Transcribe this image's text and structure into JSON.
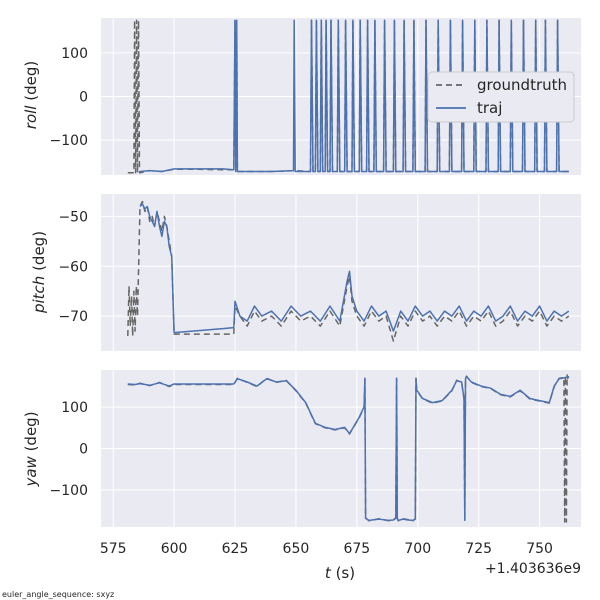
{
  "colors": {
    "panel_bg": "#eaeaf2",
    "grid": "#ffffff",
    "groundtruth": "#666666",
    "traj": "#4c72b0"
  },
  "legend": {
    "placement": "right, top panel",
    "entries": [
      "groundtruth",
      "traj"
    ]
  },
  "footnote": "euler_angle_sequence: sxyz",
  "chart_data": [
    {
      "type": "line",
      "ylabel_italic": "roll",
      "ylabel_unit": " (deg)",
      "ylim": [
        -180,
        180
      ],
      "yticks": [
        100,
        0,
        -100
      ],
      "ytick_labels": [
        "100",
        "0",
        "−100"
      ],
      "xlim": [
        570,
        767
      ],
      "series": [
        {
          "name": "groundtruth",
          "style": "dashed",
          "x": [
            581,
            583.5,
            583.8,
            584.2,
            584.6,
            585,
            585.4,
            585.8,
            586,
            590,
            595,
            600,
            610,
            620,
            624.5,
            625,
            625.3,
            625.7,
            626,
            630,
            640,
            650,
            655,
            656,
            656.4,
            657,
            658,
            658.4,
            659,
            660,
            660.4,
            661,
            662,
            662.4,
            663,
            664,
            664.4,
            665,
            667,
            667.4,
            668,
            670,
            670.4,
            671,
            673,
            673.4,
            674,
            676,
            676.4,
            677,
            679,
            679.4,
            680,
            682,
            682.4,
            683,
            686,
            686.4,
            687,
            690,
            690.4,
            691,
            694,
            694.4,
            695,
            698,
            698.4,
            699,
            703,
            703.4,
            704,
            708,
            708.4,
            709,
            713,
            713.4,
            714,
            718,
            718.4,
            719,
            723,
            723.4,
            724,
            728,
            728.4,
            729,
            733,
            733.4,
            734,
            738,
            738.4,
            739,
            743,
            743.4,
            744,
            748,
            748.4,
            749,
            752,
            752.4,
            753,
            757,
            757.4,
            758,
            762
          ],
          "y": [
            -175,
            -175,
            175,
            -175,
            175,
            -175,
            175,
            -175,
            -175,
            -170,
            -172,
            -167,
            -167,
            -168,
            -168,
            175,
            -172,
            175,
            -172,
            -172,
            -172,
            -170,
            -172,
            -172,
            175,
            -172,
            -172,
            175,
            -172,
            -172,
            175,
            -172,
            -172,
            175,
            -172,
            -172,
            175,
            -172,
            -172,
            175,
            -172,
            -172,
            175,
            -172,
            -172,
            175,
            -172,
            -172,
            175,
            -172,
            -172,
            175,
            -172,
            -172,
            175,
            -172,
            -172,
            175,
            -172,
            -172,
            175,
            -172,
            -172,
            175,
            -172,
            -172,
            175,
            -172,
            -172,
            175,
            -172,
            -172,
            175,
            -172,
            -172,
            175,
            -172,
            -172,
            175,
            -172,
            -172,
            175,
            -172,
            -172,
            175,
            -172,
            -172,
            175,
            -172,
            -172,
            175,
            -172,
            -172,
            175,
            -172,
            -172,
            175,
            -172,
            -172,
            175,
            -172,
            -172,
            175,
            -172,
            -172
          ]
        },
        {
          "name": "traj",
          "style": "solid",
          "x": [
            586,
            590,
            595,
            600,
            610,
            620,
            624.5,
            625,
            625.3,
            625.7,
            626,
            630,
            640,
            649,
            649.3,
            649.7,
            650,
            655,
            656,
            656.4,
            657,
            658,
            658.4,
            659,
            660,
            660.4,
            661,
            662,
            662.4,
            663,
            664,
            664.4,
            665,
            667,
            667.4,
            668,
            670,
            670.4,
            671,
            673,
            673.4,
            674,
            676,
            676.4,
            677,
            679,
            679.4,
            680,
            682,
            682.4,
            683,
            686,
            686.4,
            687,
            690,
            690.4,
            691,
            694,
            694.4,
            695,
            698,
            698.4,
            699,
            703,
            703.4,
            704,
            708,
            708.4,
            709,
            713,
            713.4,
            714,
            718,
            718.4,
            719,
            723,
            723.4,
            724,
            728,
            728.4,
            729,
            733,
            733.4,
            734,
            738,
            738.4,
            739,
            743,
            743.4,
            744,
            748,
            748.4,
            749,
            752,
            752.4,
            753,
            757,
            757.4,
            758,
            762
          ],
          "y": [
            -172,
            -170,
            -172,
            -166,
            -166,
            -166,
            -168,
            175,
            -172,
            175,
            -172,
            -172,
            -172,
            -170,
            175,
            -172,
            -172,
            -172,
            -172,
            175,
            -172,
            -172,
            175,
            -172,
            -172,
            175,
            -172,
            -172,
            175,
            -172,
            -172,
            175,
            -172,
            -172,
            175,
            -172,
            -172,
            175,
            -172,
            -172,
            175,
            -172,
            -172,
            175,
            -172,
            -172,
            175,
            -172,
            -172,
            175,
            -172,
            -172,
            175,
            -172,
            -172,
            175,
            -172,
            -172,
            175,
            -172,
            -172,
            175,
            -172,
            -172,
            175,
            -172,
            -172,
            175,
            -172,
            -172,
            175,
            -172,
            -172,
            175,
            -172,
            -172,
            175,
            -172,
            -172,
            175,
            -172,
            -172,
            175,
            -172,
            -172,
            175,
            -172,
            -172,
            175,
            -172,
            -172,
            175,
            -172,
            -172,
            175,
            -172,
            -172,
            175,
            -172,
            -172
          ]
        }
      ]
    },
    {
      "type": "line",
      "ylabel_italic": "pitch",
      "ylabel_unit": " (deg)",
      "ylim": [
        -77,
        -45.5
      ],
      "yticks": [
        -50,
        -60,
        -70
      ],
      "ytick_labels": [
        "−50",
        "−60",
        "−70"
      ],
      "xlim": [
        570,
        767
      ],
      "series": [
        {
          "name": "groundtruth",
          "style": "dashed",
          "x": [
            581,
            581.5,
            582,
            582.5,
            583,
            583.5,
            584,
            584.5,
            585,
            586,
            587,
            588,
            589,
            590,
            591,
            592,
            593,
            594,
            595,
            596,
            597,
            598,
            599,
            600,
            605,
            610,
            615,
            620,
            624.5,
            625,
            627,
            630,
            633,
            636,
            640,
            644,
            648,
            652,
            656,
            660,
            664,
            668,
            671,
            672,
            673,
            675,
            678,
            681,
            684,
            687,
            690,
            693,
            696,
            699,
            702,
            705,
            708,
            711,
            714,
            717,
            720,
            723,
            726,
            729,
            732,
            735,
            738,
            741,
            744,
            747,
            750,
            753,
            756,
            759,
            762
          ],
          "y": [
            -74,
            -64,
            -72,
            -66,
            -74,
            -65,
            -73,
            -64,
            -70,
            -48,
            -47,
            -49,
            -48,
            -51,
            -50,
            -52,
            -49,
            -51,
            -53,
            -50,
            -52,
            -55,
            -58,
            -73.6,
            -73.6,
            -73.6,
            -73.6,
            -73.6,
            -73.6,
            -68,
            -70,
            -72,
            -69,
            -71,
            -70,
            -72,
            -69,
            -71,
            -70,
            -72,
            -69,
            -72,
            -64,
            -62,
            -67,
            -70,
            -72,
            -69,
            -71,
            -70,
            -75,
            -70,
            -72,
            -69,
            -71,
            -70,
            -72,
            -70,
            -71,
            -69,
            -72,
            -70,
            -71,
            -69,
            -72,
            -71,
            -69,
            -72,
            -70,
            -71,
            -69,
            -72,
            -70,
            -71,
            -70
          ]
        },
        {
          "name": "traj",
          "style": "solid",
          "x": [
            586,
            587,
            588,
            589,
            590,
            591,
            592,
            593,
            594,
            595,
            596,
            597,
            598,
            599,
            600,
            605,
            610,
            615,
            620,
            624.5,
            625,
            627,
            630,
            633,
            636,
            640,
            644,
            648,
            652,
            656,
            660,
            664,
            668,
            671,
            672,
            673,
            675,
            678,
            681,
            684,
            687,
            690,
            693,
            696,
            699,
            702,
            705,
            708,
            711,
            714,
            717,
            720,
            723,
            726,
            729,
            732,
            735,
            738,
            741,
            744,
            747,
            750,
            753,
            756,
            759,
            762
          ],
          "y": [
            -48,
            -47.5,
            -48.5,
            -48,
            -50,
            -51,
            -52,
            -49,
            -52,
            -54,
            -51,
            -52,
            -56,
            -58,
            -73.3,
            -73.1,
            -72.9,
            -72.7,
            -72.5,
            -72.3,
            -67,
            -70,
            -71,
            -68,
            -70,
            -69,
            -71,
            -68,
            -70,
            -69,
            -71,
            -68,
            -71,
            -63,
            -61,
            -66,
            -69,
            -71,
            -68,
            -70,
            -69,
            -73,
            -69,
            -71,
            -68,
            -70,
            -69,
            -71,
            -69,
            -70,
            -68,
            -71,
            -69,
            -70,
            -68,
            -71,
            -70,
            -68,
            -71,
            -69,
            -70,
            -68,
            -71,
            -69,
            -70,
            -69
          ]
        }
      ]
    },
    {
      "type": "line",
      "ylabel_italic": "yaw",
      "ylabel_unit": " (deg)",
      "ylim": [
        -190,
        190
      ],
      "yticks": [
        100,
        0,
        -100
      ],
      "ytick_labels": [
        "100",
        "0",
        "−100"
      ],
      "xlabel_italic": "t",
      "xlabel_unit": " (s)",
      "xticks": [
        575,
        600,
        625,
        650,
        675,
        700,
        725,
        750
      ],
      "xtick_labels": [
        "575",
        "600",
        "625",
        "650",
        "675",
        "700",
        "725",
        "750"
      ],
      "x_offset_label": "+1.403636e9",
      "xlim": [
        570,
        767
      ],
      "series": [
        {
          "name": "groundtruth",
          "style": "dashed",
          "x": [
            581,
            584,
            586,
            590,
            594,
            598,
            600,
            610,
            620,
            624.5,
            626,
            630,
            634,
            638,
            642,
            646,
            650,
            654,
            658,
            662,
            666,
            670,
            672,
            674,
            676,
            678,
            678.3,
            678.6,
            680,
            684,
            688,
            690,
            691,
            691.3,
            691.6,
            692,
            694,
            696,
            698,
            699,
            699.3,
            699.6,
            702,
            706,
            710,
            714,
            716,
            718,
            719,
            719.3,
            719.6,
            720,
            722,
            726,
            730,
            734,
            738,
            742,
            746,
            750,
            754,
            756,
            758,
            760,
            760.3,
            760.6,
            761,
            761.3,
            761.6,
            762
          ],
          "y": [
            155,
            154,
            158,
            152,
            160,
            150,
            155,
            155,
            155,
            155,
            170,
            160,
            150,
            170,
            160,
            165,
            140,
            110,
            60,
            50,
            45,
            50,
            35,
            55,
            75,
            100,
            170,
            -168,
            -175,
            -170,
            -175,
            -172,
            -168,
            170,
            -170,
            -175,
            -170,
            -172,
            -175,
            -170,
            170,
            140,
            120,
            110,
            115,
            140,
            165,
            160,
            120,
            -175,
            170,
            175,
            160,
            150,
            145,
            130,
            125,
            140,
            120,
            115,
            110,
            150,
            170,
            172,
            -178,
            175,
            -178,
            178,
            170,
            175
          ]
        },
        {
          "name": "traj",
          "style": "solid",
          "x": [
            581,
            584,
            586,
            590,
            594,
            598,
            600,
            610,
            620,
            624.5,
            626,
            630,
            634,
            638,
            642,
            646,
            650,
            654,
            658,
            662,
            666,
            670,
            672,
            674,
            676,
            678,
            678.3,
            678.6,
            680,
            684,
            688,
            690,
            691,
            691.3,
            691.6,
            692,
            694,
            696,
            698,
            699,
            699.3,
            699.6,
            702,
            706,
            710,
            714,
            716,
            718,
            719,
            719.3,
            719.6,
            720,
            722,
            726,
            730,
            734,
            738,
            742,
            746,
            750,
            754,
            756,
            758,
            760,
            762
          ],
          "y": [
            156,
            155,
            157,
            153,
            159,
            151,
            156,
            156,
            156,
            156,
            169,
            161,
            151,
            169,
            161,
            164,
            141,
            111,
            61,
            51,
            46,
            51,
            36,
            56,
            76,
            101,
            169,
            -169,
            -174,
            -171,
            -174,
            -173,
            -169,
            169,
            -169,
            -174,
            -171,
            -173,
            -174,
            -171,
            169,
            141,
            121,
            111,
            116,
            141,
            164,
            161,
            121,
            -174,
            169,
            174,
            161,
            151,
            146,
            131,
            126,
            141,
            121,
            116,
            111,
            151,
            169,
            171,
            174
          ]
        }
      ]
    }
  ]
}
